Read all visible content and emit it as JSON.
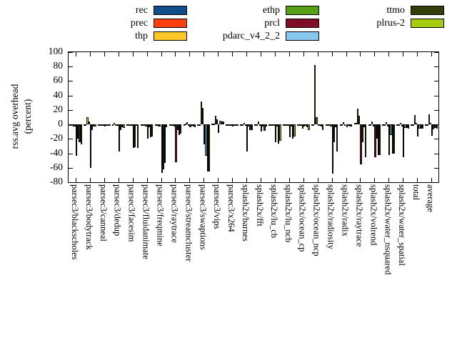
{
  "legend": [
    {
      "label": "rec",
      "color": "#104e8b"
    },
    {
      "label": "prec",
      "color": "#ff400d"
    },
    {
      "label": "thp",
      "color": "#fdc827"
    },
    {
      "label": "ethp",
      "color": "#579f15"
    },
    {
      "label": "prcl",
      "color": "#800c26"
    },
    {
      "label": "pdarc_v4_2_2",
      "color": "#88c7f0"
    },
    {
      "label": "ttmo",
      "color": "#323f08"
    },
    {
      "label": "plrus-2",
      "color": "#a7cc0d"
    }
  ],
  "chart_data": {
    "type": "bar",
    "title": "",
    "xlabel": "",
    "ylabel": "rss.avg overhead (percent)",
    "ylabel_lines": [
      "rss.avg overhead",
      "(percent)"
    ],
    "ylim": [
      -80,
      100
    ],
    "yticks": [
      100,
      80,
      60,
      40,
      20,
      0,
      -20,
      -40,
      -60,
      -80
    ],
    "grid": false,
    "legend_position": "top",
    "categories": [
      "parsec3/blackscholes",
      "parsec3/bodytrack",
      "parsec3/canneal",
      "parsec3/dedup",
      "parsec3/facesim",
      "parsec3/fluidanimate",
      "parsec3/freqmine",
      "parsec3/raytrace",
      "parsec3/streamcluster",
      "parsec3/swaptions",
      "parsec3/vips",
      "parsec3/x264",
      "splash2x/barnes",
      "splash2x/fft",
      "splash2x/lu_cb",
      "splash2x/lu_ncb",
      "splash2x/ocean_cp",
      "splash2x/ocean_ncp",
      "splash2x/radiosity",
      "splash2x/radix",
      "splash2x/raytrace",
      "splash2x/volrend",
      "splash2x/water_nsquared",
      "splash2x/water_spatial",
      "total",
      "average"
    ],
    "series": [
      {
        "name": "rec",
        "color": "#104e8b",
        "values": [
          -2,
          -2,
          -1,
          -1,
          -2,
          -1,
          -2,
          -2,
          -1,
          -2,
          1,
          -1,
          -1,
          -2,
          -2,
          -2,
          -1,
          -1,
          -2,
          -1,
          2,
          -2,
          -2,
          -2,
          -2,
          -2
        ]
      },
      {
        "name": "prec",
        "color": "#ff400d",
        "values": [
          -2,
          -2,
          -1,
          2,
          -2,
          -1,
          -2,
          -2,
          1,
          -2,
          1,
          -1,
          -1,
          -2,
          -2,
          -2,
          -1,
          -1,
          -2,
          -1,
          2,
          -2,
          -2,
          -2,
          -2,
          -2
        ]
      },
      {
        "name": "thp",
        "color": "#fdc827",
        "values": [
          -3,
          10,
          -2,
          -1,
          -2,
          -2,
          -3,
          -2,
          3,
          32,
          12,
          -2,
          2,
          4,
          -2,
          -2,
          -2,
          82,
          -2,
          3,
          22,
          4,
          3,
          2,
          13,
          14
        ]
      },
      {
        "name": "ethp",
        "color": "#579f15",
        "values": [
          -3,
          4,
          -2,
          -2,
          -2,
          -3,
          -3,
          -3,
          -2,
          23,
          7,
          -2,
          -2,
          -2,
          -2,
          -2,
          -6,
          10,
          -3,
          -2,
          12,
          -3,
          -3,
          -3,
          2,
          2
        ]
      },
      {
        "name": "prcl",
        "color": "#800c26",
        "values": [
          -43,
          -60,
          -3,
          -37,
          -33,
          -20,
          -67,
          -52,
          -4,
          -28,
          -12,
          -3,
          -37,
          -10,
          -25,
          -18,
          -3,
          -2,
          -68,
          -4,
          -55,
          -45,
          -42,
          -45,
          -17,
          -16
        ]
      },
      {
        "name": "pdarc_v4_2_2",
        "color": "#88c7f0",
        "values": [
          -20,
          -8,
          -2,
          -8,
          -32,
          -4,
          -62,
          -8,
          -2,
          -43,
          5,
          -2,
          -3,
          -3,
          -3,
          -3,
          -2,
          -2,
          -25,
          -2,
          -25,
          -20,
          -15,
          -5,
          -6,
          -7
        ]
      },
      {
        "name": "ttmo",
        "color": "#323f08",
        "values": [
          -25,
          -3,
          -2,
          -4,
          -2,
          -18,
          -53,
          -15,
          -3,
          -65,
          4,
          -2,
          -8,
          -9,
          -27,
          -20,
          -4,
          -3,
          -4,
          -3,
          -4,
          -42,
          -40,
          -5,
          -6,
          -5
        ]
      },
      {
        "name": "plrus-2",
        "color": "#a7cc0d",
        "values": [
          -28,
          -3,
          -2,
          -5,
          -33,
          -17,
          -4,
          -13,
          -4,
          -65,
          4,
          -2,
          -8,
          -3,
          -23,
          -17,
          -8,
          -8,
          -37,
          -3,
          -45,
          -42,
          -40,
          -6,
          -6,
          -6
        ]
      }
    ]
  }
}
